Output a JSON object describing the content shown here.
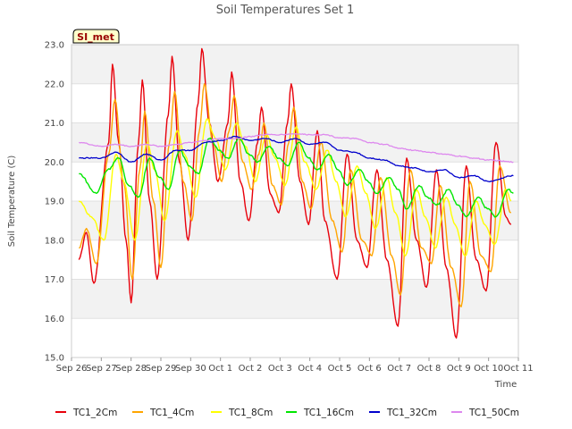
{
  "chart_data": {
    "type": "line",
    "title": "Soil Temperatures Set 1",
    "xlabel": "Time",
    "ylabel": "Soil Temperature (C)",
    "site_badge": "SI_met",
    "x_tick_labels": [
      "Sep 26",
      "Sep 27",
      "Sep 28",
      "Sep 29",
      "Sep 30",
      "Oct 1",
      "Oct 2",
      "Oct 3",
      "Oct 4",
      "Oct 5",
      "Oct 6",
      "Oct 7",
      "Oct 8",
      "Oct 9",
      "Oct 10",
      "Oct 11"
    ],
    "y_ticks": [
      15.0,
      16.0,
      17.0,
      18.0,
      19.0,
      20.0,
      21.0,
      22.0,
      23.0
    ],
    "y_tick_labels": [
      "15.0",
      "16.0",
      "17.0",
      "18.0",
      "19.0",
      "20.0",
      "21.0",
      "22.0",
      "23.0"
    ],
    "ylim": [
      15.0,
      23.0
    ],
    "xlim": [
      "Sep 26",
      "Oct 11"
    ],
    "grid": "horizontal bands",
    "legend_position": "bottom",
    "series": [
      {
        "name": "TC1_2Cm",
        "color": "#e8000b",
        "points": [
          [
            "Sep 26 06:00",
            17.5
          ],
          [
            "Sep 26 12:00",
            18.2
          ],
          [
            "Sep 26 18:00",
            16.9
          ],
          [
            "Sep 27 06:00",
            20.5
          ],
          [
            "Sep 27 09:00",
            22.5
          ],
          [
            "Sep 27 14:00",
            20.5
          ],
          [
            "Sep 27 20:00",
            18.0
          ],
          [
            "Sep 28 00:00",
            16.4
          ],
          [
            "Sep 28 06:00",
            20.5
          ],
          [
            "Sep 28 09:00",
            22.1
          ],
          [
            "Sep 28 15:00",
            19.0
          ],
          [
            "Sep 28 21:00",
            17.0
          ],
          [
            "Sep 29 06:00",
            21.2
          ],
          [
            "Sep 29 09:00",
            22.7
          ],
          [
            "Sep 29 15:00",
            20.0
          ],
          [
            "Sep 29 22:00",
            18.0
          ],
          [
            "Sep 30 06:00",
            21.5
          ],
          [
            "Sep 30 09:00",
            22.9
          ],
          [
            "Sep 30 15:00",
            21.0
          ],
          [
            "Sep 30 22:00",
            19.5
          ],
          [
            "Oct 1 06:00",
            21.0
          ],
          [
            "Oct 1 09:00",
            22.3
          ],
          [
            "Oct 1 16:00",
            19.5
          ],
          [
            "Oct 1 23:00",
            18.5
          ],
          [
            "Oct 2 06:00",
            20.5
          ],
          [
            "Oct 2 09:00",
            21.4
          ],
          [
            "Oct 2 16:00",
            19.2
          ],
          [
            "Oct 2 23:00",
            18.7
          ],
          [
            "Oct 3 06:00",
            21.0
          ],
          [
            "Oct 3 09:00",
            22.0
          ],
          [
            "Oct 3 16:00",
            19.5
          ],
          [
            "Oct 3 23:00",
            18.4
          ],
          [
            "Oct 4 06:00",
            20.8
          ],
          [
            "Oct 4 12:00",
            18.5
          ],
          [
            "Oct 4 22:00",
            17.0
          ],
          [
            "Oct 5 06:00",
            20.2
          ],
          [
            "Oct 5 14:00",
            18.0
          ],
          [
            "Oct 5 22:00",
            17.3
          ],
          [
            "Oct 6 06:00",
            19.8
          ],
          [
            "Oct 6 14:00",
            17.5
          ],
          [
            "Oct 6 23:00",
            15.8
          ],
          [
            "Oct 7 06:00",
            20.1
          ],
          [
            "Oct 7 14:00",
            18.0
          ],
          [
            "Oct 7 22:00",
            16.8
          ],
          [
            "Oct 8 06:00",
            19.8
          ],
          [
            "Oct 8 14:00",
            17.3
          ],
          [
            "Oct 8 22:00",
            15.5
          ],
          [
            "Oct 9 06:00",
            19.9
          ],
          [
            "Oct 9 14:00",
            17.5
          ],
          [
            "Oct 9 22:00",
            16.7
          ],
          [
            "Oct 10 06:00",
            20.5
          ],
          [
            "Oct 10 14:00",
            18.6
          ],
          [
            "Oct 10 18:00",
            18.4
          ]
        ]
      },
      {
        "name": "TC1_4Cm",
        "color": "#ffa500",
        "points": [
          [
            "Sep 26 06:00",
            17.8
          ],
          [
            "Sep 26 12:00",
            18.3
          ],
          [
            "Sep 26 20:00",
            17.4
          ],
          [
            "Sep 27 06:00",
            20.2
          ],
          [
            "Sep 27 11:00",
            21.6
          ],
          [
            "Sep 27 18:00",
            19.5
          ],
          [
            "Sep 28 01:00",
            17.0
          ],
          [
            "Sep 28 07:00",
            19.8
          ],
          [
            "Sep 28 11:00",
            21.3
          ],
          [
            "Sep 28 18:00",
            19.0
          ],
          [
            "Sep 29 00:00",
            17.3
          ],
          [
            "Sep 29 07:00",
            20.5
          ],
          [
            "Sep 29 11:00",
            21.8
          ],
          [
            "Sep 29 18:00",
            19.5
          ],
          [
            "Sep 30 01:00",
            18.5
          ],
          [
            "Sep 30 07:00",
            20.8
          ],
          [
            "Sep 30 11:00",
            22.0
          ],
          [
            "Sep 30 18:00",
            20.5
          ],
          [
            "Oct 1 01:00",
            19.5
          ],
          [
            "Oct 1 07:00",
            20.8
          ],
          [
            "Oct 1 11:00",
            21.7
          ],
          [
            "Oct 1 18:00",
            20.0
          ],
          [
            "Oct 2 01:00",
            19.3
          ],
          [
            "Oct 2 07:00",
            20.2
          ],
          [
            "Oct 2 11:00",
            21.0
          ],
          [
            "Oct 2 18:00",
            19.4
          ],
          [
            "Oct 3 01:00",
            18.9
          ],
          [
            "Oct 3 07:00",
            20.5
          ],
          [
            "Oct 3 11:00",
            21.4
          ],
          [
            "Oct 3 18:00",
            19.5
          ],
          [
            "Oct 4 01:00",
            18.8
          ],
          [
            "Oct 4 09:00",
            20.5
          ],
          [
            "Oct 4 18:00",
            18.5
          ],
          [
            "Oct 5 02:00",
            17.7
          ],
          [
            "Oct 5 09:00",
            19.8
          ],
          [
            "Oct 5 18:00",
            18.0
          ],
          [
            "Oct 6 02:00",
            17.6
          ],
          [
            "Oct 6 09:00",
            19.6
          ],
          [
            "Oct 6 18:00",
            17.6
          ],
          [
            "Oct 7 01:00",
            16.6
          ],
          [
            "Oct 7 09:00",
            19.8
          ],
          [
            "Oct 7 18:00",
            17.8
          ],
          [
            "Oct 8 02:00",
            17.4
          ],
          [
            "Oct 8 09:00",
            19.4
          ],
          [
            "Oct 8 18:00",
            17.3
          ],
          [
            "Oct 9 02:00",
            16.3
          ],
          [
            "Oct 9 09:00",
            19.5
          ],
          [
            "Oct 9 18:00",
            17.6
          ],
          [
            "Oct 10 02:00",
            17.2
          ],
          [
            "Oct 10 09:00",
            19.9
          ],
          [
            "Oct 10 18:00",
            18.7
          ]
        ]
      },
      {
        "name": "TC1_8Cm",
        "color": "#ffff00",
        "points": [
          [
            "Sep 26 06:00",
            19.0
          ],
          [
            "Sep 26 16:00",
            18.6
          ],
          [
            "Sep 27 02:00",
            18.0
          ],
          [
            "Sep 27 12:00",
            20.2
          ],
          [
            "Sep 27 18:00",
            19.5
          ],
          [
            "Sep 28 03:00",
            18.0
          ],
          [
            "Sep 28 13:00",
            20.5
          ],
          [
            "Sep 28 19:00",
            19.8
          ],
          [
            "Sep 29 03:00",
            18.5
          ],
          [
            "Sep 29 13:00",
            20.8
          ],
          [
            "Sep 29 19:00",
            20.2
          ],
          [
            "Sep 30 04:00",
            19.1
          ],
          [
            "Sep 30 13:00",
            21.1
          ],
          [
            "Sep 30 20:00",
            20.6
          ],
          [
            "Oct 1 04:00",
            19.8
          ],
          [
            "Oct 1 13:00",
            21.0
          ],
          [
            "Oct 1 20:00",
            20.4
          ],
          [
            "Oct 2 04:00",
            19.5
          ],
          [
            "Oct 2 13:00",
            20.7
          ],
          [
            "Oct 2 20:00",
            20.1
          ],
          [
            "Oct 3 04:00",
            19.4
          ],
          [
            "Oct 3 13:00",
            20.9
          ],
          [
            "Oct 3 20:00",
            20.0
          ],
          [
            "Oct 4 05:00",
            19.3
          ],
          [
            "Oct 4 14:00",
            20.3
          ],
          [
            "Oct 4 21:00",
            19.5
          ],
          [
            "Oct 5 05:00",
            18.6
          ],
          [
            "Oct 5 14:00",
            19.9
          ],
          [
            "Oct 5 21:00",
            19.2
          ],
          [
            "Oct 6 05:00",
            18.3
          ],
          [
            "Oct 6 14:00",
            19.6
          ],
          [
            "Oct 6 21:00",
            18.7
          ],
          [
            "Oct 7 05:00",
            17.6
          ],
          [
            "Oct 7 14:00",
            19.3
          ],
          [
            "Oct 7 21:00",
            18.6
          ],
          [
            "Oct 8 05:00",
            17.8
          ],
          [
            "Oct 8 14:00",
            19.1
          ],
          [
            "Oct 8 21:00",
            18.4
          ],
          [
            "Oct 9 05:00",
            17.6
          ],
          [
            "Oct 9 14:00",
            19.0
          ],
          [
            "Oct 9 21:00",
            18.4
          ],
          [
            "Oct 10 05:00",
            17.9
          ],
          [
            "Oct 10 14:00",
            19.3
          ],
          [
            "Oct 10 18:00",
            19.0
          ]
        ]
      },
      {
        "name": "TC1_16Cm",
        "color": "#00e600",
        "points": [
          [
            "Sep 26 06:00",
            19.7
          ],
          [
            "Sep 26 20:00",
            19.2
          ],
          [
            "Sep 27 05:00",
            19.8
          ],
          [
            "Sep 27 14:00",
            20.1
          ],
          [
            "Sep 27 22:00",
            19.4
          ],
          [
            "Sep 28 06:00",
            19.1
          ],
          [
            "Sep 28 15:00",
            20.1
          ],
          [
            "Sep 28 23:00",
            19.6
          ],
          [
            "Sep 29 06:00",
            19.3
          ],
          [
            "Sep 29 15:00",
            20.3
          ],
          [
            "Sep 29 23:00",
            19.9
          ],
          [
            "Sep 30 06:00",
            19.7
          ],
          [
            "Sep 30 15:00",
            20.6
          ],
          [
            "Sep 30 23:00",
            20.3
          ],
          [
            "Oct 1 06:00",
            20.1
          ],
          [
            "Oct 1 15:00",
            20.6
          ],
          [
            "Oct 1 23:00",
            20.2
          ],
          [
            "Oct 2 06:00",
            20.0
          ],
          [
            "Oct 2 15:00",
            20.4
          ],
          [
            "Oct 2 23:00",
            20.1
          ],
          [
            "Oct 3 06:00",
            19.9
          ],
          [
            "Oct 3 15:00",
            20.5
          ],
          [
            "Oct 3 23:00",
            20.1
          ],
          [
            "Oct 4 06:00",
            19.8
          ],
          [
            "Oct 4 15:00",
            20.2
          ],
          [
            "Oct 4 23:00",
            19.8
          ],
          [
            "Oct 5 06:00",
            19.4
          ],
          [
            "Oct 5 16:00",
            19.8
          ],
          [
            "Oct 5 23:00",
            19.5
          ],
          [
            "Oct 6 06:00",
            19.2
          ],
          [
            "Oct 6 16:00",
            19.6
          ],
          [
            "Oct 6 23:00",
            19.3
          ],
          [
            "Oct 7 06:00",
            18.8
          ],
          [
            "Oct 7 16:00",
            19.4
          ],
          [
            "Oct 7 23:00",
            19.1
          ],
          [
            "Oct 8 06:00",
            18.9
          ],
          [
            "Oct 8 16:00",
            19.3
          ],
          [
            "Oct 8 23:00",
            18.9
          ],
          [
            "Oct 9 06:00",
            18.6
          ],
          [
            "Oct 9 16:00",
            19.1
          ],
          [
            "Oct 9 23:00",
            18.8
          ],
          [
            "Oct 10 06:00",
            18.6
          ],
          [
            "Oct 10 16:00",
            19.3
          ],
          [
            "Oct 10 20:00",
            19.2
          ]
        ]
      },
      {
        "name": "TC1_32Cm",
        "color": "#0000cc",
        "points": [
          [
            "Sep 26 06:00",
            20.1
          ],
          [
            "Sep 27 00:00",
            20.1
          ],
          [
            "Sep 27 12:00",
            20.25
          ],
          [
            "Sep 28 00:00",
            20.0
          ],
          [
            "Sep 28 12:00",
            20.2
          ],
          [
            "Sep 29 00:00",
            20.05
          ],
          [
            "Sep 29 12:00",
            20.3
          ],
          [
            "Sep 30 00:00",
            20.3
          ],
          [
            "Sep 30 12:00",
            20.5
          ],
          [
            "Oct 1 00:00",
            20.55
          ],
          [
            "Oct 1 12:00",
            20.65
          ],
          [
            "Oct 2 00:00",
            20.55
          ],
          [
            "Oct 2 12:00",
            20.6
          ],
          [
            "Oct 3 00:00",
            20.5
          ],
          [
            "Oct 3 12:00",
            20.6
          ],
          [
            "Oct 4 00:00",
            20.45
          ],
          [
            "Oct 4 12:00",
            20.5
          ],
          [
            "Oct 5 00:00",
            20.3
          ],
          [
            "Oct 5 12:00",
            20.25
          ],
          [
            "Oct 6 00:00",
            20.1
          ],
          [
            "Oct 6 12:00",
            20.05
          ],
          [
            "Oct 7 00:00",
            19.9
          ],
          [
            "Oct 7 12:00",
            19.85
          ],
          [
            "Oct 8 00:00",
            19.75
          ],
          [
            "Oct 8 12:00",
            19.8
          ],
          [
            "Oct 9 00:00",
            19.6
          ],
          [
            "Oct 9 12:00",
            19.65
          ],
          [
            "Oct 10 00:00",
            19.5
          ],
          [
            "Oct 10 20:00",
            19.65
          ]
        ]
      },
      {
        "name": "TC1_50Cm",
        "color": "#dd88ee",
        "points": [
          [
            "Sep 26 06:00",
            20.5
          ],
          [
            "Sep 27 00:00",
            20.4
          ],
          [
            "Sep 27 12:00",
            20.45
          ],
          [
            "Sep 28 00:00",
            20.4
          ],
          [
            "Sep 28 12:00",
            20.45
          ],
          [
            "Sep 29 00:00",
            20.4
          ],
          [
            "Sep 29 12:00",
            20.45
          ],
          [
            "Sep 30 00:00",
            20.5
          ],
          [
            "Sep 30 12:00",
            20.55
          ],
          [
            "Oct 1 00:00",
            20.6
          ],
          [
            "Oct 1 12:00",
            20.6
          ],
          [
            "Oct 2 00:00",
            20.65
          ],
          [
            "Oct 2 12:00",
            20.7
          ],
          [
            "Oct 3 00:00",
            20.7
          ],
          [
            "Oct 3 12:00",
            20.72
          ],
          [
            "Oct 4 00:00",
            20.7
          ],
          [
            "Oct 4 12:00",
            20.7
          ],
          [
            "Oct 5 00:00",
            20.62
          ],
          [
            "Oct 5 12:00",
            20.6
          ],
          [
            "Oct 6 00:00",
            20.5
          ],
          [
            "Oct 6 12:00",
            20.45
          ],
          [
            "Oct 7 00:00",
            20.35
          ],
          [
            "Oct 7 12:00",
            20.3
          ],
          [
            "Oct 8 00:00",
            20.25
          ],
          [
            "Oct 8 12:00",
            20.2
          ],
          [
            "Oct 9 00:00",
            20.15
          ],
          [
            "Oct 9 12:00",
            20.1
          ],
          [
            "Oct 10 00:00",
            20.05
          ],
          [
            "Oct 10 20:00",
            20.0
          ]
        ]
      }
    ]
  },
  "colors": {
    "plot_band": "#f2f2f2",
    "grid": "#e0e0e0",
    "axis": "#cccccc",
    "badge_fill": "#ffffcc",
    "badge_text": "#990000"
  }
}
